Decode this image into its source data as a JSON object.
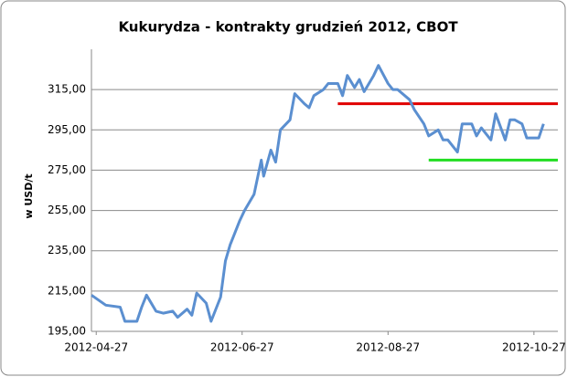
{
  "chart_data": {
    "type": "line",
    "title": "Kukurydza - kontrakty grudzień 2012, CBOT",
    "ylabel": "w USD/t",
    "x": [
      "2012-04-25",
      "2012-05-01",
      "2012-05-07",
      "2012-05-09",
      "2012-05-14",
      "2012-05-16",
      "2012-05-18",
      "2012-05-22",
      "2012-05-25",
      "2012-05-29",
      "2012-05-31",
      "2012-06-04",
      "2012-06-06",
      "2012-06-08",
      "2012-06-12",
      "2012-06-14",
      "2012-06-18",
      "2012-06-20",
      "2012-06-22",
      "2012-06-26",
      "2012-06-28",
      "2012-07-02",
      "2012-07-05",
      "2012-07-06",
      "2012-07-09",
      "2012-07-11",
      "2012-07-13",
      "2012-07-17",
      "2012-07-19",
      "2012-07-23",
      "2012-07-25",
      "2012-07-27",
      "2012-07-31",
      "2012-08-02",
      "2012-08-06",
      "2012-08-08",
      "2012-08-10",
      "2012-08-13",
      "2012-08-15",
      "2012-08-17",
      "2012-08-21",
      "2012-08-23",
      "2012-08-27",
      "2012-08-29",
      "2012-08-31",
      "2012-09-05",
      "2012-09-07",
      "2012-09-11",
      "2012-09-13",
      "2012-09-17",
      "2012-09-19",
      "2012-09-21",
      "2012-09-25",
      "2012-09-27",
      "2012-10-01",
      "2012-10-03",
      "2012-10-05",
      "2012-10-09",
      "2012-10-11",
      "2012-10-15",
      "2012-10-17",
      "2012-10-19",
      "2012-10-22",
      "2012-10-24",
      "2012-10-29",
      "2012-10-31"
    ],
    "series": [
      {
        "color": "#5b8fd0",
        "values": [
          213,
          208,
          207,
          200,
          200,
          207,
          213,
          205,
          204,
          205,
          202,
          206,
          203,
          214,
          209,
          200,
          212,
          230,
          238,
          250,
          255,
          263,
          280,
          272,
          285,
          279,
          295,
          300,
          313,
          308,
          306,
          312,
          315,
          318,
          318,
          312,
          322,
          316,
          320,
          314,
          322,
          327,
          318,
          315,
          315,
          310,
          305,
          298,
          292,
          295,
          290,
          290,
          284,
          298,
          298,
          292,
          296,
          290,
          303,
          290,
          300,
          300,
          298,
          291,
          291,
          298
        ]
      }
    ],
    "hlines": [
      {
        "value": 308,
        "color": "#e00000",
        "start": "2012-08-06"
      },
      {
        "value": 280,
        "color": "#22dd22",
        "start": "2012-09-13"
      }
    ],
    "xlim": [
      "2012-04-25",
      "2012-11-06"
    ],
    "xticks": [
      "2012-04-27",
      "2012-06-27",
      "2012-08-27",
      "2012-10-27"
    ],
    "ylim": [
      195,
      335
    ],
    "yticks": [
      {
        "value": 195,
        "label": "195,00"
      },
      {
        "value": 215,
        "label": "215,00"
      },
      {
        "value": 235,
        "label": "235,00"
      },
      {
        "value": 255,
        "label": "255,00"
      },
      {
        "value": 275,
        "label": "275,00"
      },
      {
        "value": 295,
        "label": "295,00"
      },
      {
        "value": 315,
        "label": "315,00"
      }
    ],
    "grid": true
  }
}
